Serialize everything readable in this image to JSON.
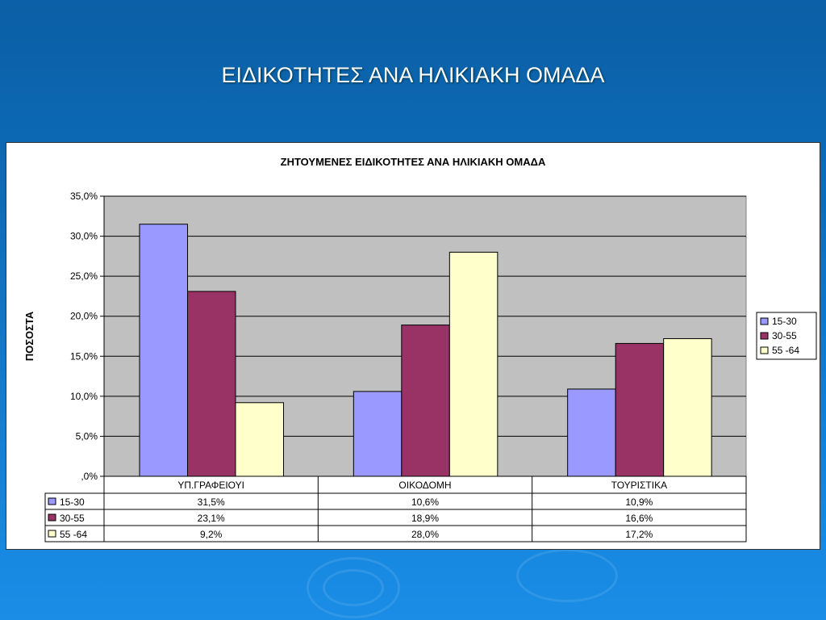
{
  "slide_title": "ΕΙΔΙΚΟΤΗΤΕΣ ΑΝΑ ΗΛΙΚΙΑΚΗ ΟΜΑΔΑ",
  "chart_data": {
    "type": "bar",
    "title": "ΖΗΤΟΥΜΕΝΕΣ ΕΙΔΙΚΟΤΗΤΕΣ ΑΝΑ ΗΛΙΚΙΑΚΗ ΟΜΑΔΑ",
    "ylabel": "ΠΟΣΟΣΤΑ",
    "xlabel": "",
    "ylim": [
      0,
      35
    ],
    "yticks": [
      ",0%",
      "5,0%",
      "10,0%",
      "15,0%",
      "20,0%",
      "25,0%",
      "30,0%",
      "35,0%"
    ],
    "categories": [
      "ΥΠ.ΓΡΑΦΕΙΟΥΙ",
      "ΟΙΚΟΔΟΜΗ",
      "ΤΟΥΡΙΣΤΙΚΑ"
    ],
    "series": [
      {
        "name": "15-30",
        "color": "#9999ff",
        "values": [
          31.5,
          10.6,
          10.9
        ],
        "labels": [
          "31,5%",
          "10,6%",
          "10,9%"
        ]
      },
      {
        "name": "30-55",
        "color": "#993366",
        "values": [
          23.1,
          18.9,
          16.6
        ],
        "labels": [
          "23,1%",
          "18,9%",
          "16,6%"
        ]
      },
      {
        "name": "55 -64",
        "color": "#ffffcc",
        "values": [
          9.2,
          28.0,
          17.2
        ],
        "labels": [
          "9,2%",
          "28,0%",
          "17,2%"
        ]
      }
    ],
    "grid": true,
    "legend": "right",
    "data_table": true
  }
}
